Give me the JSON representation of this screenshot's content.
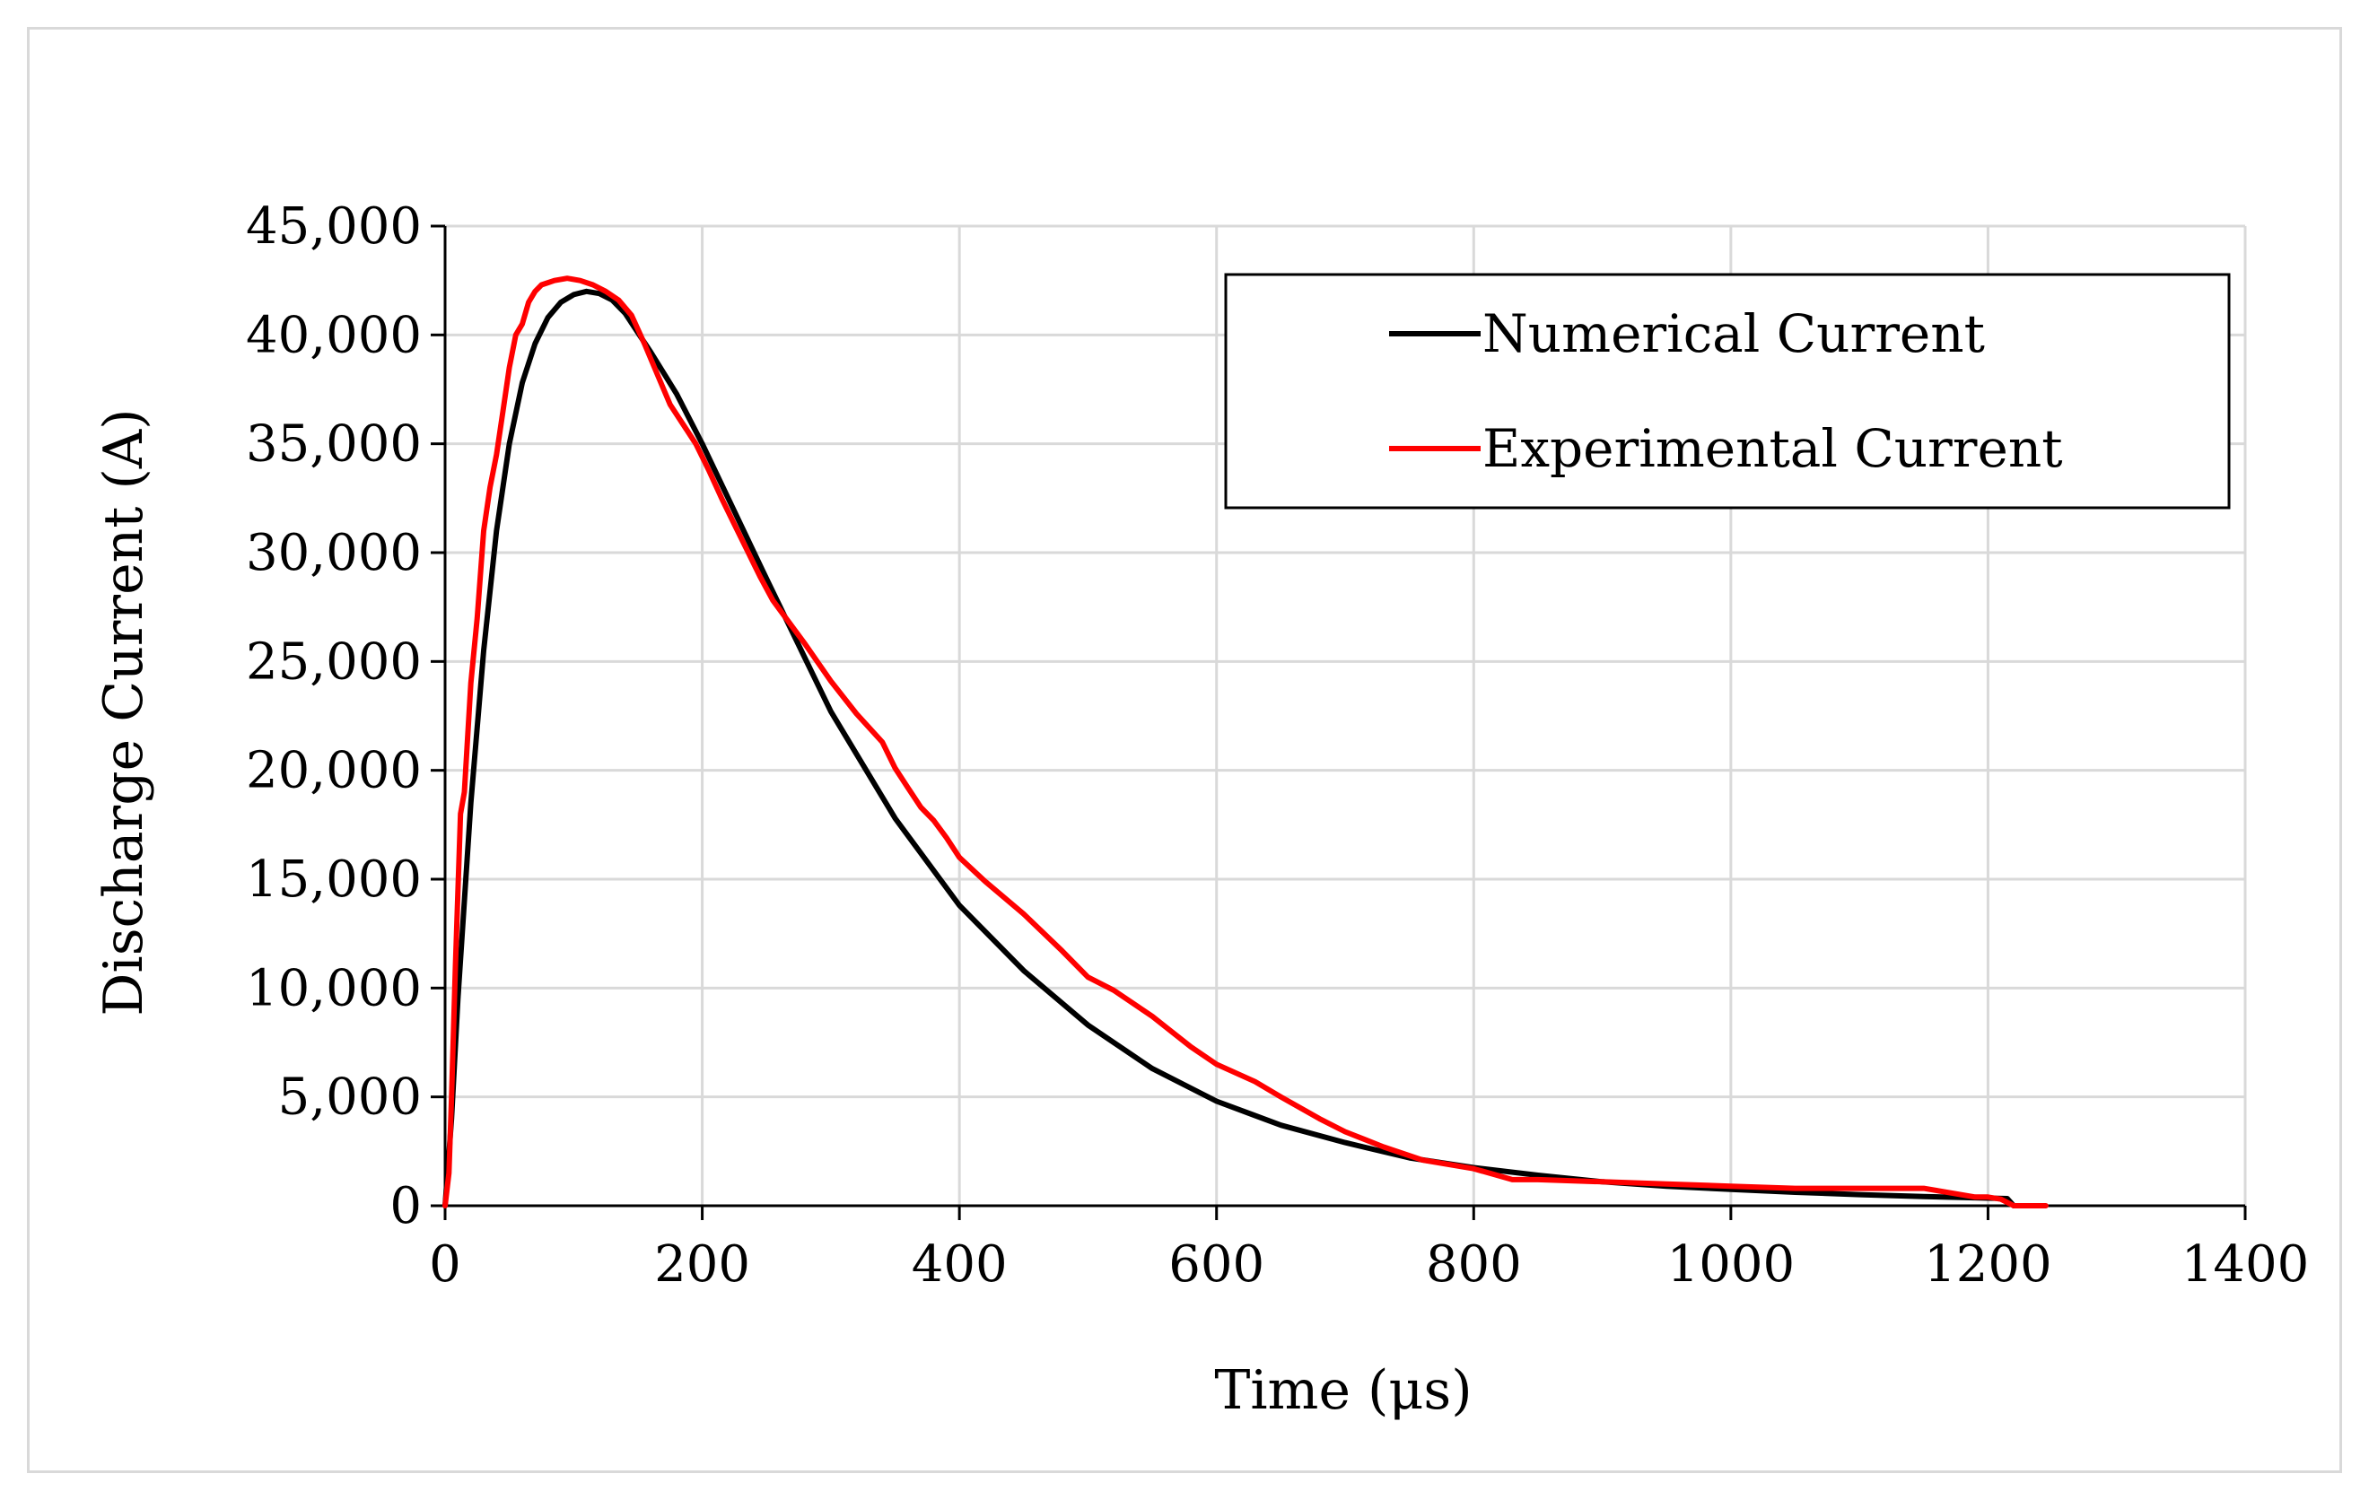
{
  "chart_data": {
    "type": "line",
    "title": "",
    "xlabel": "Time (μs)",
    "ylabel": "Discharge Current (A)",
    "xlim": [
      0,
      1400
    ],
    "ylim": [
      0,
      45000
    ],
    "x_ticks": [
      0,
      200,
      400,
      600,
      800,
      1000,
      1200,
      1400
    ],
    "x_tick_labels": [
      "0",
      "200",
      "400",
      "600",
      "800",
      "1000",
      "1200",
      "1400"
    ],
    "y_ticks": [
      0,
      5000,
      10000,
      15000,
      20000,
      25000,
      30000,
      35000,
      40000,
      45000
    ],
    "y_tick_labels": [
      "0",
      "5,000",
      "10,000",
      "15,000",
      "20,000",
      "25,000",
      "30,000",
      "35,000",
      "40,000",
      "45,000"
    ],
    "grid": true,
    "legend_position": "top-right",
    "series": [
      {
        "name": "Numerical Current",
        "color": "#000000",
        "x": [
          0,
          5,
          10,
          20,
          30,
          40,
          50,
          60,
          70,
          80,
          90,
          100,
          110,
          120,
          130,
          140,
          160,
          180,
          200,
          250,
          300,
          350,
          400,
          450,
          500,
          550,
          600,
          650,
          700,
          750,
          800,
          850,
          900,
          950,
          1000,
          1050,
          1100,
          1150,
          1200,
          1215,
          1220
        ],
        "values": [
          0,
          4000,
          9500,
          18500,
          25500,
          31000,
          35000,
          37800,
          39600,
          40800,
          41500,
          41850,
          42000,
          41900,
          41600,
          41000,
          39200,
          37300,
          35000,
          28800,
          22700,
          17800,
          13800,
          10800,
          8300,
          6300,
          4800,
          3700,
          2900,
          2200,
          1750,
          1400,
          1100,
          900,
          750,
          620,
          510,
          420,
          350,
          330,
          0
        ]
      },
      {
        "name": "Experimental Current",
        "color": "#ff0000",
        "x": [
          0,
          3,
          5,
          8,
          12,
          15,
          20,
          25,
          30,
          35,
          40,
          45,
          50,
          55,
          60,
          65,
          70,
          75,
          80,
          85,
          95,
          105,
          115,
          125,
          135,
          145,
          155,
          165,
          175,
          185,
          195,
          205,
          215,
          225,
          235,
          245,
          255,
          265,
          280,
          300,
          320,
          340,
          350,
          360,
          370,
          380,
          390,
          400,
          420,
          450,
          480,
          500,
          520,
          550,
          580,
          600,
          630,
          650,
          680,
          700,
          730,
          760,
          800,
          830,
          850,
          900,
          950,
          1000,
          1050,
          1100,
          1150,
          1170,
          1190,
          1200,
          1210,
          1220,
          1245
        ],
        "values": [
          0,
          1500,
          5000,
          11000,
          18000,
          19000,
          24000,
          27000,
          31000,
          33000,
          34500,
          36500,
          38500,
          40000,
          40500,
          41500,
          42000,
          42300,
          42400,
          42500,
          42600,
          42500,
          42300,
          42000,
          41600,
          40900,
          39600,
          38200,
          36800,
          35900,
          35000,
          33800,
          32500,
          31300,
          30100,
          28900,
          27800,
          27000,
          25800,
          24100,
          22600,
          21300,
          20100,
          19200,
          18300,
          17700,
          16900,
          16000,
          14900,
          13400,
          11700,
          10500,
          9900,
          8700,
          7300,
          6500,
          5700,
          5000,
          4000,
          3400,
          2700,
          2100,
          1700,
          1200,
          1200,
          1100,
          1000,
          900,
          800,
          800,
          800,
          600,
          400,
          400,
          300,
          0,
          0
        ]
      }
    ]
  }
}
